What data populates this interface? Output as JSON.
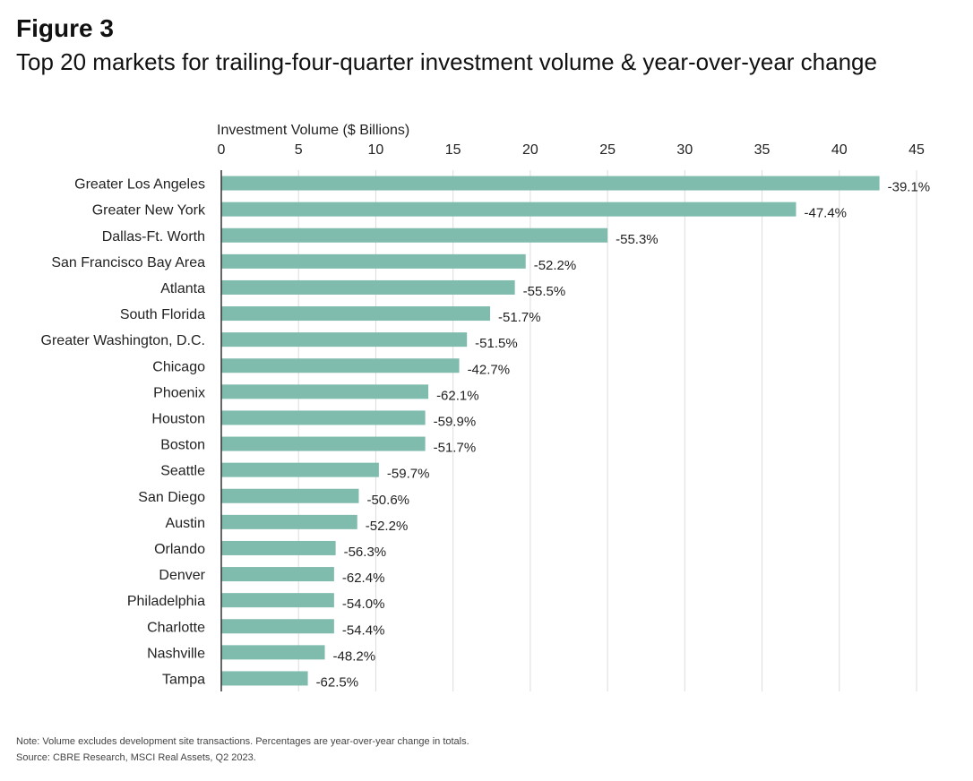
{
  "figure": {
    "label": "Figure 3",
    "title": "Top 20 markets for trailing-four-quarter investment volume & year-over-year change"
  },
  "notes": {
    "note": "Note: Volume excludes development site transactions. Percentages are year-over-year change in totals.",
    "source": "Source: CBRE Research, MSCI Real Assets, Q2 2023."
  },
  "colors": {
    "bar": "#80bcad",
    "grid": "#dcdcdc",
    "axis": "#333333",
    "text": "#222222"
  },
  "chart_data": {
    "type": "bar",
    "orientation": "horizontal",
    "xlabel": "Investment Volume ($ Billions)",
    "xlabel_position": "top",
    "xlim": [
      0,
      45
    ],
    "xticks": [
      0,
      5,
      10,
      15,
      20,
      25,
      30,
      35,
      40,
      45
    ],
    "grid": true,
    "categories": [
      "Greater Los Angeles",
      "Greater New York",
      "Dallas-Ft. Worth",
      "San Francisco Bay Area",
      "Atlanta",
      "South Florida",
      "Greater Washington, D.C.",
      "Chicago",
      "Phoenix",
      "Houston",
      "Boston",
      "Seattle",
      "San Diego",
      "Austin",
      "Orlando",
      "Denver",
      "Philadelphia",
      "Charlotte",
      "Nashville",
      "Tampa"
    ],
    "values": [
      42.6,
      37.2,
      25.0,
      19.7,
      19.0,
      17.4,
      15.9,
      15.4,
      13.4,
      13.2,
      13.2,
      10.2,
      8.9,
      8.8,
      7.4,
      7.3,
      7.3,
      7.3,
      6.7,
      5.6
    ],
    "labels": [
      "-39.1%",
      "-47.4%",
      "-55.3%",
      "-52.2%",
      "-55.5%",
      "-51.7%",
      "-51.5%",
      "-42.7%",
      "-62.1%",
      "-59.9%",
      "-51.7%",
      "-59.7%",
      "-50.6%",
      "-52.2%",
      "-56.3%",
      "-62.4%",
      "-54.0%",
      "-54.4%",
      "-48.2%",
      "-62.5%"
    ]
  }
}
